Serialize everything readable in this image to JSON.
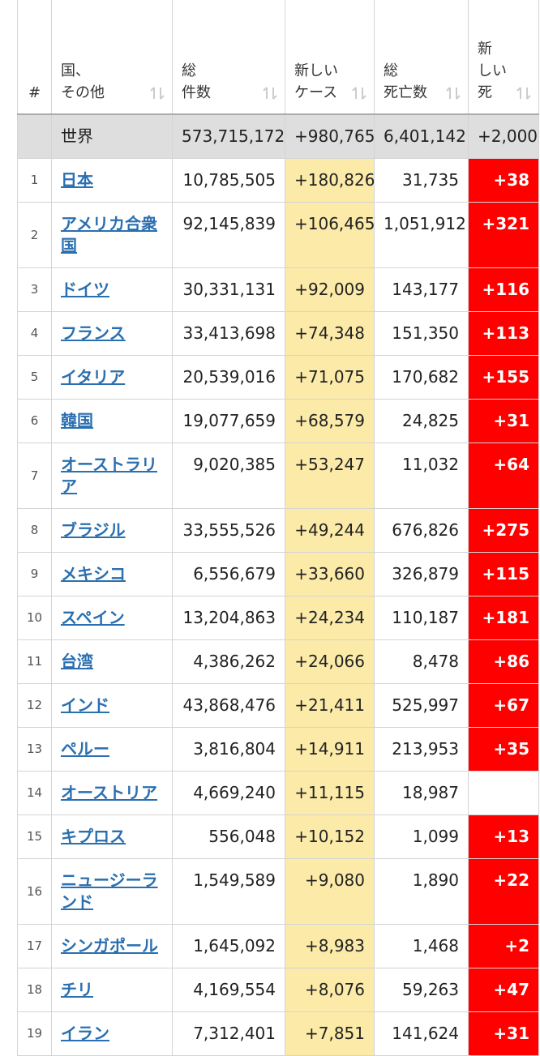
{
  "table": {
    "header": [
      [
        "#"
      ],
      [
        "国、",
        "その他"
      ],
      [
        "総",
        "件数"
      ],
      [
        "新しい",
        "ケース"
      ],
      [
        "総",
        "死亡数"
      ],
      [
        "新",
        "しい",
        "死"
      ]
    ],
    "world": [
      "世界",
      "573,715,172",
      "+980,765",
      "6,401,142",
      "+2,000"
    ],
    "rows": [
      [
        "1",
        "日本",
        "10,785,505",
        "+180,826",
        "31,735",
        "+38"
      ],
      [
        "2",
        "アメリカ合衆国",
        "92,145,839",
        "+106,465",
        "1,051,912",
        "+321"
      ],
      [
        "3",
        "ドイツ",
        "30,331,131",
        "+92,009",
        "143,177",
        "+116"
      ],
      [
        "4",
        "フランス",
        "33,413,698",
        "+74,348",
        "151,350",
        "+113"
      ],
      [
        "5",
        "イタリア",
        "20,539,016",
        "+71,075",
        "170,682",
        "+155"
      ],
      [
        "6",
        "韓国",
        "19,077,659",
        "+68,579",
        "24,825",
        "+31"
      ],
      [
        "7",
        "オーストラリア",
        "9,020,385",
        "+53,247",
        "11,032",
        "+64"
      ],
      [
        "8",
        "ブラジル",
        "33,555,526",
        "+49,244",
        "676,826",
        "+275"
      ],
      [
        "9",
        "メキシコ",
        "6,556,679",
        "+33,660",
        "326,879",
        "+115"
      ],
      [
        "10",
        "スペイン",
        "13,204,863",
        "+24,234",
        "110,187",
        "+181"
      ],
      [
        "11",
        "台湾",
        "4,386,262",
        "+24,066",
        "8,478",
        "+86"
      ],
      [
        "12",
        "インド",
        "43,868,476",
        "+21,411",
        "525,997",
        "+67"
      ],
      [
        "13",
        "ペルー",
        "3,816,804",
        "+14,911",
        "213,953",
        "+35"
      ],
      [
        "14",
        "オーストリア",
        "4,669,240",
        "+11,115",
        "18,987",
        null
      ],
      [
        "15",
        "キプロス",
        "556,048",
        "+10,152",
        "1,099",
        "+13"
      ],
      [
        "16",
        "ニュージーランド",
        "1,549,589",
        "+9,080",
        "1,890",
        "+22"
      ],
      [
        "17",
        "シンガポール",
        "1,645,092",
        "+8,983",
        "1,468",
        "+2"
      ],
      [
        "18",
        "チリ",
        "4,169,554",
        "+8,076",
        "59,263",
        "+47"
      ],
      [
        "19",
        "イラン",
        "7,312,401",
        "+7,851",
        "141,624",
        "+31"
      ]
    ]
  }
}
